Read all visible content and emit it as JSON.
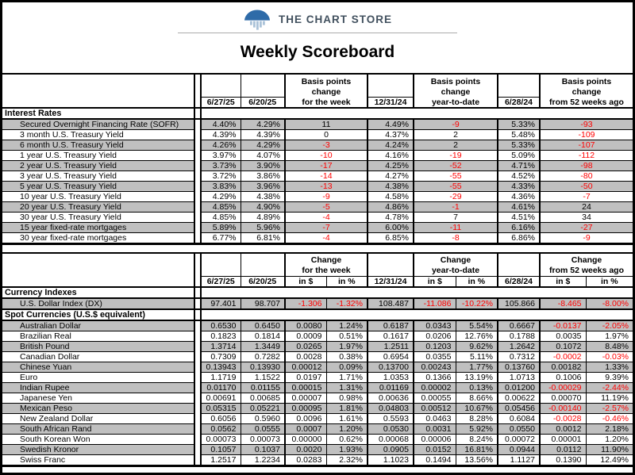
{
  "brand": {
    "name": "THE CHART STORE",
    "logo_icon": "chart-store-dome-bars-icon",
    "dome_color": "#2e6ba8",
    "bar_color": "#aac2d8",
    "text_color": "#41505e"
  },
  "title": "Weekly Scoreboard",
  "colors": {
    "row_gray": "#c0c0c0",
    "negative_red": "#ff0000",
    "border_black": "#000000"
  },
  "rates_table": {
    "dates": [
      "6/27/25",
      "6/20/25",
      "12/31/24",
      "6/28/24"
    ],
    "group_headers": [
      [
        "Basis points",
        "change",
        "for the week"
      ],
      [
        "Basis points",
        "change",
        "year-to-date"
      ],
      [
        "Basis points",
        "change",
        "from 52 weeks ago"
      ]
    ],
    "section_label": "Interest Rates",
    "rows": [
      {
        "label": "Secured Overnight Financing Rate (SOFR)",
        "current": "4.40%",
        "prior": "4.29%",
        "week": "11",
        "dec31": "4.49%",
        "ytd": "-9",
        "year_ago": "5.33%",
        "wk52": "-93"
      },
      {
        "label": "3 month U.S. Treasury Yield",
        "current": "4.39%",
        "prior": "4.39%",
        "week": "0",
        "dec31": "4.37%",
        "ytd": "2",
        "year_ago": "5.48%",
        "wk52": "-109"
      },
      {
        "label": "6 month U.S. Treasury Yield",
        "current": "4.26%",
        "prior": "4.29%",
        "week": "-3",
        "dec31": "4.24%",
        "ytd": "2",
        "year_ago": "5.33%",
        "wk52": "-107"
      },
      {
        "label": "1 year U.S. Treasury Yield",
        "current": "3.97%",
        "prior": "4.07%",
        "week": "-10",
        "dec31": "4.16%",
        "ytd": "-19",
        "year_ago": "5.09%",
        "wk52": "-112"
      },
      {
        "label": "2 year U.S. Treasury Yield",
        "current": "3.73%",
        "prior": "3.90%",
        "week": "-17",
        "dec31": "4.25%",
        "ytd": "-52",
        "year_ago": "4.71%",
        "wk52": "-98"
      },
      {
        "label": "3 year U.S. Treasury Yield",
        "current": "3.72%",
        "prior": "3.86%",
        "week": "-14",
        "dec31": "4.27%",
        "ytd": "-55",
        "year_ago": "4.52%",
        "wk52": "-80"
      },
      {
        "label": "5 year U.S. Treasury Yield",
        "current": "3.83%",
        "prior": "3.96%",
        "week": "-13",
        "dec31": "4.38%",
        "ytd": "-55",
        "year_ago": "4.33%",
        "wk52": "-50"
      },
      {
        "label": "10 year U.S. Treasury Yield",
        "current": "4.29%",
        "prior": "4.38%",
        "week": "-9",
        "dec31": "4.58%",
        "ytd": "-29",
        "year_ago": "4.36%",
        "wk52": "-7"
      },
      {
        "label": "20 year U.S. Treasury Yield",
        "current": "4.85%",
        "prior": "4.90%",
        "week": "-5",
        "dec31": "4.86%",
        "ytd": "-1",
        "year_ago": "4.61%",
        "wk52": "24"
      },
      {
        "label": "30 year U.S. Treasury Yield",
        "current": "4.85%",
        "prior": "4.89%",
        "week": "-4",
        "dec31": "4.78%",
        "ytd": "7",
        "year_ago": "4.51%",
        "wk52": "34"
      },
      {
        "label": "15 year fixed-rate mortgages",
        "current": "5.89%",
        "prior": "5.96%",
        "week": "-7",
        "dec31": "6.00%",
        "ytd": "-11",
        "year_ago": "6.16%",
        "wk52": "-27"
      },
      {
        "label": "30 year fixed-rate mortgages",
        "current": "6.77%",
        "prior": "6.81%",
        "week": "-4",
        "dec31": "6.85%",
        "ytd": "-8",
        "year_ago": "6.86%",
        "wk52": "-9"
      }
    ]
  },
  "currency_table": {
    "dates": [
      "6/27/25",
      "6/20/25",
      "12/31/24",
      "6/28/24"
    ],
    "group_headers": [
      [
        "Change",
        "for the week"
      ],
      [
        "Change",
        "year-to-date"
      ],
      [
        "Change",
        "from 52 weeks ago"
      ]
    ],
    "sub_headers": [
      "in $",
      "in %"
    ],
    "sections": [
      {
        "label": "Currency Indexes",
        "rows": [
          {
            "label": "U.S. Dollar Index (DX)",
            "current": "97.401",
            "prior": "98.707",
            "week_usd": "-1.306",
            "week_pct": "-1.32%",
            "dec31": "108.487",
            "ytd_usd": "-11.086",
            "ytd_pct": "-10.22%",
            "year_ago": "105.866",
            "wk52_usd": "-8.465",
            "wk52_pct": "-8.00%"
          }
        ]
      },
      {
        "label": "Spot Currencies (U.S.$ equivalent)",
        "rows": [
          {
            "label": "Australian Dollar",
            "current": "0.6530",
            "prior": "0.6450",
            "week_usd": "0.0080",
            "week_pct": "1.24%",
            "dec31": "0.6187",
            "ytd_usd": "0.0343",
            "ytd_pct": "5.54%",
            "year_ago": "0.6667",
            "wk52_usd": "-0.0137",
            "wk52_pct": "-2.05%"
          },
          {
            "label": "Brazilian Real",
            "current": "0.1823",
            "prior": "0.1814",
            "week_usd": "0.0009",
            "week_pct": "0.51%",
            "dec31": "0.1617",
            "ytd_usd": "0.0206",
            "ytd_pct": "12.76%",
            "year_ago": "0.1788",
            "wk52_usd": "0.0035",
            "wk52_pct": "1.97%"
          },
          {
            "label": "British Pound",
            "current": "1.3714",
            "prior": "1.3449",
            "week_usd": "0.0265",
            "week_pct": "1.97%",
            "dec31": "1.2511",
            "ytd_usd": "0.1203",
            "ytd_pct": "9.62%",
            "year_ago": "1.2642",
            "wk52_usd": "0.1072",
            "wk52_pct": "8.48%"
          },
          {
            "label": "Canadian Dollar",
            "current": "0.7309",
            "prior": "0.7282",
            "week_usd": "0.0028",
            "week_pct": "0.38%",
            "dec31": "0.6954",
            "ytd_usd": "0.0355",
            "ytd_pct": "5.11%",
            "year_ago": "0.7312",
            "wk52_usd": "-0.0002",
            "wk52_pct": "-0.03%"
          },
          {
            "label": "Chinese Yuan",
            "current": "0.13943",
            "prior": "0.13930",
            "week_usd": "0.00012",
            "week_pct": "0.09%",
            "dec31": "0.13700",
            "ytd_usd": "0.00243",
            "ytd_pct": "1.77%",
            "year_ago": "0.13760",
            "wk52_usd": "0.00182",
            "wk52_pct": "1.33%"
          },
          {
            "label": "Euro",
            "current": "1.1719",
            "prior": "1.1522",
            "week_usd": "0.0197",
            "week_pct": "1.71%",
            "dec31": "1.0353",
            "ytd_usd": "0.1366",
            "ytd_pct": "13.19%",
            "year_ago": "1.0713",
            "wk52_usd": "0.1006",
            "wk52_pct": "9.39%"
          },
          {
            "label": "Indian Rupee",
            "current": "0.01170",
            "prior": "0.01155",
            "week_usd": "0.00015",
            "week_pct": "1.31%",
            "dec31": "0.01169",
            "ytd_usd": "0.00002",
            "ytd_pct": "0.13%",
            "year_ago": "0.01200",
            "wk52_usd": "-0.00029",
            "wk52_pct": "-2.44%"
          },
          {
            "label": "Japanese Yen",
            "current": "0.00691",
            "prior": "0.00685",
            "week_usd": "0.00007",
            "week_pct": "0.98%",
            "dec31": "0.00636",
            "ytd_usd": "0.00055",
            "ytd_pct": "8.66%",
            "year_ago": "0.00622",
            "wk52_usd": "0.00070",
            "wk52_pct": "11.19%"
          },
          {
            "label": "Mexican Peso",
            "current": "0.05315",
            "prior": "0.05221",
            "week_usd": "0.00095",
            "week_pct": "1.81%",
            "dec31": "0.04803",
            "ytd_usd": "0.00512",
            "ytd_pct": "10.67%",
            "year_ago": "0.05456",
            "wk52_usd": "-0.00140",
            "wk52_pct": "-2.57%"
          },
          {
            "label": "New Zealand Dollar",
            "current": "0.6056",
            "prior": "0.5960",
            "week_usd": "0.0096",
            "week_pct": "1.61%",
            "dec31": "0.5593",
            "ytd_usd": "0.0463",
            "ytd_pct": "8.28%",
            "year_ago": "0.6084",
            "wk52_usd": "-0.0028",
            "wk52_pct": "-0.46%"
          },
          {
            "label": "South African Rand",
            "current": "0.0562",
            "prior": "0.0555",
            "week_usd": "0.0007",
            "week_pct": "1.20%",
            "dec31": "0.0530",
            "ytd_usd": "0.0031",
            "ytd_pct": "5.92%",
            "year_ago": "0.0550",
            "wk52_usd": "0.0012",
            "wk52_pct": "2.18%"
          },
          {
            "label": "South Korean Won",
            "current": "0.00073",
            "prior": "0.00073",
            "week_usd": "0.00000",
            "week_pct": "0.62%",
            "dec31": "0.00068",
            "ytd_usd": "0.00006",
            "ytd_pct": "8.24%",
            "year_ago": "0.00072",
            "wk52_usd": "0.00001",
            "wk52_pct": "1.20%"
          },
          {
            "label": "Swedish Kronor",
            "current": "0.1057",
            "prior": "0.1037",
            "week_usd": "0.0020",
            "week_pct": "1.93%",
            "dec31": "0.0905",
            "ytd_usd": "0.0152",
            "ytd_pct": "16.81%",
            "year_ago": "0.0944",
            "wk52_usd": "0.0112",
            "wk52_pct": "11.90%"
          },
          {
            "label": "Swiss Franc",
            "current": "1.2517",
            "prior": "1.2234",
            "week_usd": "0.0283",
            "week_pct": "2.32%",
            "dec31": "1.1023",
            "ytd_usd": "0.1494",
            "ytd_pct": "13.56%",
            "year_ago": "1.1127",
            "wk52_usd": "0.1390",
            "wk52_pct": "12.49%"
          }
        ]
      }
    ]
  }
}
